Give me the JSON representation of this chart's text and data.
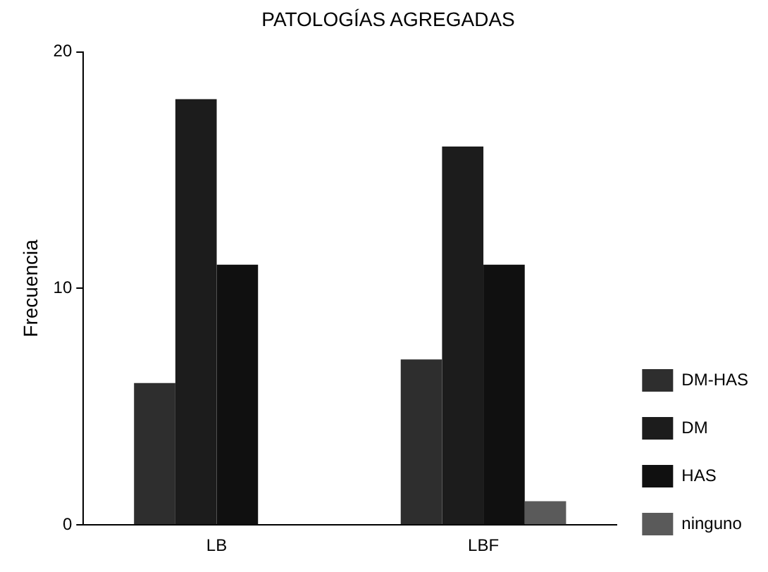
{
  "chart_data": {
    "type": "bar",
    "title": "PATOLOGÍAS AGREGADAS",
    "ylabel": "Frecuencia",
    "categories": [
      "LB",
      "LBF"
    ],
    "series": [
      {
        "name": "DM-HAS",
        "color": "#2e2e2e",
        "values": [
          6,
          7
        ]
      },
      {
        "name": "DM",
        "color": "#1c1c1c",
        "values": [
          18,
          16
        ]
      },
      {
        "name": "HAS",
        "color": "#101010",
        "values": [
          11,
          11
        ]
      },
      {
        "name": "ninguno",
        "color": "#5a5a5a",
        "values": [
          0,
          1
        ]
      }
    ],
    "ylim": [
      0,
      20
    ],
    "yticks": [
      0,
      10,
      20
    ],
    "grid": false,
    "legend": "bottom right"
  }
}
